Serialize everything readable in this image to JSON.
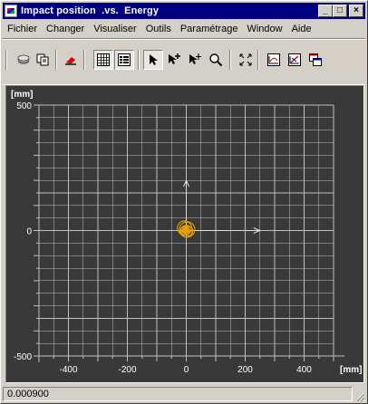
{
  "window": {
    "title": "Impact position  .vs.  Energy",
    "controls": {
      "minimize": "_",
      "maximize": "□",
      "close": "×"
    }
  },
  "menubar": [
    "Fichier",
    "Changer",
    "Visualiser",
    "Outils",
    "Paramétrage",
    "Window",
    "Aide"
  ],
  "toolbar": {
    "buttons": [
      {
        "icon": "disk-icon"
      },
      {
        "icon": "copy-icon"
      },
      {
        "icon": "eraser-icon"
      },
      {
        "icon": "grid-icon",
        "pressed": true
      },
      {
        "icon": "list-icon",
        "pressed": true
      },
      {
        "icon": "arrow-pointer-icon",
        "pressed": true
      },
      {
        "icon": "pointer-plus-icon"
      },
      {
        "icon": "pointer-move-icon"
      },
      {
        "icon": "zoom-icon"
      },
      {
        "icon": "fit-icon"
      },
      {
        "icon": "chart-icon"
      },
      {
        "icon": "chart-edit-icon"
      },
      {
        "icon": "window-stack-icon"
      }
    ]
  },
  "chart_data": {
    "type": "scatter",
    "title": "",
    "xlabel": "[mm]",
    "ylabel": "[mm]",
    "xlim": [
      -500,
      500
    ],
    "ylim": [
      -500,
      500
    ],
    "x_tick_labels": [
      "-400",
      "-200",
      "0",
      "200",
      "400"
    ],
    "y_tick_labels": [
      "500",
      "0",
      "-500"
    ],
    "x_ticks": [
      -400,
      -200,
      0,
      200,
      400
    ],
    "y_ticks": [
      500,
      0,
      -500
    ],
    "grid": true,
    "axis_arrows": true,
    "background": "#393939",
    "grid_color": "#c0c0c0",
    "marker_color": "#e8a200",
    "points": [
      {
        "x": -2,
        "y": 2,
        "r": 11
      },
      {
        "x": -4,
        "y": 0,
        "r": 15
      },
      {
        "x": 0,
        "y": -3,
        "r": 20
      },
      {
        "x": 3,
        "y": 4,
        "r": 26
      },
      {
        "x": -8,
        "y": 4,
        "r": 10
      },
      {
        "x": 6,
        "y": -2,
        "r": 16
      },
      {
        "x": -6,
        "y": 10,
        "r": 24
      }
    ]
  },
  "status": {
    "value": "0.000900"
  }
}
